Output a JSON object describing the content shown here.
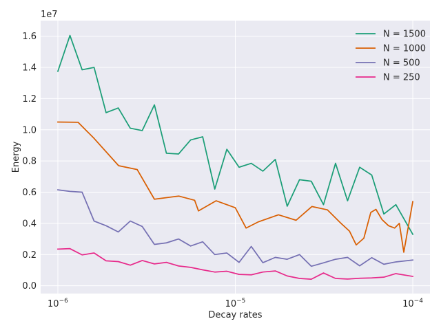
{
  "chart_data": {
    "type": "line",
    "xlabel": "Decay rates",
    "ylabel": "Energy",
    "x_scale": "log",
    "xlim": [
      8e-07,
      0.000125
    ],
    "ylim": [
      -0.05,
      1.7
    ],
    "y_offset_text": "1e7",
    "x_ticks": [
      {
        "value": 1e-06,
        "base": "10",
        "exp": "−6"
      },
      {
        "value": 1e-05,
        "base": "10",
        "exp": "−5"
      },
      {
        "value": 0.0001,
        "base": "10",
        "exp": "−4"
      }
    ],
    "y_ticks": [
      {
        "value": 0.0,
        "label": "0.0"
      },
      {
        "value": 0.2,
        "label": "0.2"
      },
      {
        "value": 0.4,
        "label": "0.4"
      },
      {
        "value": 0.6,
        "label": "0.6"
      },
      {
        "value": 0.8,
        "label": "0.8"
      },
      {
        "value": 1.0,
        "label": "1.0"
      },
      {
        "value": 1.2,
        "label": "1.2"
      },
      {
        "value": 1.4,
        "label": "1.4"
      },
      {
        "value": 1.6,
        "label": "1.6"
      }
    ],
    "grid": true,
    "legend_position": "top-right",
    "series": [
      {
        "name": "N = 1500",
        "color": "#1b9e77",
        "x": [
          1e-06,
          1.17e-06,
          1.37e-06,
          1.6e-06,
          1.87e-06,
          2.19e-06,
          2.56e-06,
          2.99e-06,
          3.5e-06,
          4.09e-06,
          4.79e-06,
          5.6e-06,
          6.55e-06,
          7.66e-06,
          8.96e-06,
          1.05e-05,
          1.23e-05,
          1.43e-05,
          1.68e-05,
          1.96e-05,
          2.3e-05,
          2.68e-05,
          3.14e-05,
          3.67e-05,
          4.29e-05,
          5.02e-05,
          5.87e-05,
          6.87e-05,
          8.03e-05,
          0.0001
        ],
        "y": [
          1.375,
          1.605,
          1.385,
          1.4,
          1.11,
          1.14,
          1.01,
          0.995,
          1.16,
          0.85,
          0.845,
          0.935,
          0.955,
          0.62,
          0.875,
          0.76,
          0.785,
          0.735,
          0.81,
          0.51,
          0.68,
          0.67,
          0.52,
          0.785,
          0.545,
          0.76,
          0.71,
          0.46,
          0.52,
          0.33
        ]
      },
      {
        "name": "N = 1000",
        "color": "#d95f02",
        "x": [
          1e-06,
          1.3e-06,
          1.6e-06,
          2.2e-06,
          2.8e-06,
          3.5e-06,
          4.8e-06,
          5.9e-06,
          6.2e-06,
          7.8e-06,
          1e-05,
          1.15e-05,
          1.35e-05,
          1.75e-05,
          2.2e-05,
          2.7e-05,
          3.3e-05,
          3.9e-05,
          4.4e-05,
          4.8e-05,
          5.3e-05,
          5.8e-05,
          6.2e-05,
          6.7e-05,
          7.3e-05,
          7.9e-05,
          8.4e-05,
          8.9e-05,
          0.0001
        ],
        "y": [
          1.05,
          1.048,
          0.945,
          0.77,
          0.745,
          0.555,
          0.575,
          0.548,
          0.48,
          0.545,
          0.5,
          0.37,
          0.41,
          0.455,
          0.42,
          0.508,
          0.487,
          0.405,
          0.35,
          0.262,
          0.305,
          0.47,
          0.49,
          0.425,
          0.385,
          0.37,
          0.4,
          0.215,
          0.54
        ]
      },
      {
        "name": "N = 500",
        "color": "#7570b3",
        "x": [
          1e-06,
          1.17e-06,
          1.37e-06,
          1.6e-06,
          1.87e-06,
          2.19e-06,
          2.56e-06,
          2.99e-06,
          3.5e-06,
          4.09e-06,
          4.79e-06,
          5.6e-06,
          6.55e-06,
          7.66e-06,
          8.96e-06,
          1.05e-05,
          1.23e-05,
          1.43e-05,
          1.68e-05,
          1.96e-05,
          2.3e-05,
          2.68e-05,
          3.14e-05,
          3.67e-05,
          4.29e-05,
          5.02e-05,
          5.87e-05,
          6.87e-05,
          8.03e-05,
          0.0001
        ],
        "y": [
          0.615,
          0.605,
          0.6,
          0.415,
          0.385,
          0.345,
          0.415,
          0.38,
          0.265,
          0.275,
          0.3,
          0.255,
          0.282,
          0.2,
          0.21,
          0.15,
          0.252,
          0.148,
          0.182,
          0.17,
          0.2,
          0.125,
          0.147,
          0.17,
          0.182,
          0.128,
          0.18,
          0.138,
          0.153,
          0.165
        ]
      },
      {
        "name": "N = 250",
        "color": "#e7298a",
        "x": [
          1e-06,
          1.17e-06,
          1.37e-06,
          1.6e-06,
          1.87e-06,
          2.19e-06,
          2.56e-06,
          2.99e-06,
          3.5e-06,
          4.09e-06,
          4.79e-06,
          5.6e-06,
          6.55e-06,
          7.66e-06,
          8.96e-06,
          1.05e-05,
          1.23e-05,
          1.43e-05,
          1.68e-05,
          1.96e-05,
          2.3e-05,
          2.68e-05,
          3.14e-05,
          3.67e-05,
          4.29e-05,
          5.02e-05,
          5.87e-05,
          6.87e-05,
          8.03e-05,
          0.0001
        ],
        "y": [
          0.235,
          0.238,
          0.198,
          0.21,
          0.16,
          0.155,
          0.132,
          0.162,
          0.14,
          0.15,
          0.127,
          0.118,
          0.102,
          0.088,
          0.093,
          0.073,
          0.07,
          0.088,
          0.095,
          0.063,
          0.047,
          0.042,
          0.082,
          0.047,
          0.043,
          0.048,
          0.05,
          0.055,
          0.078,
          0.06
        ]
      }
    ]
  }
}
